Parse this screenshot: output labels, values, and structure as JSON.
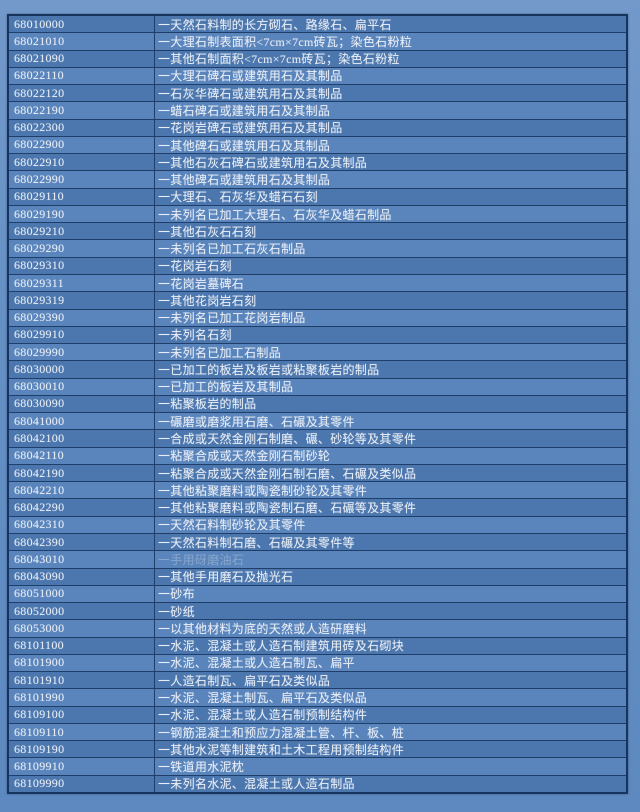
{
  "colors": {
    "page_background_top": "#7399ca",
    "page_background_bottom": "#5d89c0",
    "row_odd": "#4c77ae",
    "row_even": "#5a85bc",
    "grid_border": "#1f3e6a",
    "outer_border": "#16345d",
    "text": "#e9eef6",
    "faded_text": "#bacae0"
  },
  "table": {
    "columns": [
      "hs-code",
      "description"
    ],
    "rows": [
      {
        "code": "68010000",
        "desc": "一天然石料制的长方砌石、路缘石、扁平石",
        "faded": false
      },
      {
        "code": "68021010",
        "desc": "一大理石制表面积<7cm×7cm砖瓦；染色石粉粒",
        "faded": false
      },
      {
        "code": "68021090",
        "desc": "一其他石制面积<7cm×7cm砖瓦；染色石粉粒",
        "faded": false
      },
      {
        "code": "68022110",
        "desc": "一大理石碑石或建筑用石及其制品",
        "faded": false
      },
      {
        "code": "68022120",
        "desc": "一石灰华碑石或建筑用石及其制品",
        "faded": false
      },
      {
        "code": "68022190",
        "desc": "一蜡石碑石或建筑用石及其制品",
        "faded": false
      },
      {
        "code": "68022300",
        "desc": "一花岗岩碑石或建筑用石及其制品",
        "faded": false
      },
      {
        "code": "68022900",
        "desc": "一其他碑石或建筑用石及其制品",
        "faded": false
      },
      {
        "code": "68022910",
        "desc": "一其他石灰石碑石或建筑用石及其制品",
        "faded": false
      },
      {
        "code": "68022990",
        "desc": "一其他碑石或建筑用石及其制品",
        "faded": false
      },
      {
        "code": "68029110",
        "desc": "一大理石、石灰华及蜡石石刻",
        "faded": false
      },
      {
        "code": "68029190",
        "desc": "一未列名已加工大理石、石灰华及蜡石制品",
        "faded": false
      },
      {
        "code": "68029210",
        "desc": "一其他石灰石石刻",
        "faded": false
      },
      {
        "code": "68029290",
        "desc": "一未列名已加工石灰石制品",
        "faded": false
      },
      {
        "code": "68029310",
        "desc": "一花岗岩石刻",
        "faded": false
      },
      {
        "code": "68029311",
        "desc": "一花岗岩墓碑石",
        "faded": false
      },
      {
        "code": "68029319",
        "desc": "一其他花岗岩石刻",
        "faded": false
      },
      {
        "code": "68029390",
        "desc": "一未列名已加工花岗岩制品",
        "faded": false
      },
      {
        "code": "68029910",
        "desc": "一未列名石刻",
        "faded": false
      },
      {
        "code": "68029990",
        "desc": "一未列名已加工石制品",
        "faded": false
      },
      {
        "code": "68030000",
        "desc": "一已加工的板岩及板岩或粘聚板岩的制品",
        "faded": false
      },
      {
        "code": "68030010",
        "desc": "一已加工的板岩及其制品",
        "faded": false
      },
      {
        "code": "68030090",
        "desc": "一粘聚板岩的制品",
        "faded": false
      },
      {
        "code": "68041000",
        "desc": "一碾磨或磨浆用石磨、石碾及其零件",
        "faded": false
      },
      {
        "code": "68042100",
        "desc": "一合成或天然金刚石制磨、碾、砂轮等及其零件",
        "faded": false
      },
      {
        "code": "68042110",
        "desc": "一粘聚合成或天然金刚石制砂轮",
        "faded": false
      },
      {
        "code": "68042190",
        "desc": "一粘聚合成或天然金刚石制石磨、石碾及类似品",
        "faded": false
      },
      {
        "code": "68042210",
        "desc": "一其他粘聚磨料或陶瓷制砂轮及其零件",
        "faded": false
      },
      {
        "code": "68042290",
        "desc": "一其他粘聚磨料或陶瓷制石磨、石碾等及其零件",
        "faded": false
      },
      {
        "code": "68042310",
        "desc": "一天然石料制砂轮及其零件",
        "faded": false
      },
      {
        "code": "68042390",
        "desc": "一天然石料制石磨、石碾及其零件等",
        "faded": false
      },
      {
        "code": "68043010",
        "desc": "一手用砑磨油石",
        "faded": true
      },
      {
        "code": "68043090",
        "desc": "一其他手用磨石及抛光石",
        "faded": false
      },
      {
        "code": "68051000",
        "desc": "一砂布",
        "faded": false
      },
      {
        "code": "68052000",
        "desc": "一砂纸",
        "faded": false
      },
      {
        "code": "68053000",
        "desc": "一以其他材料为底的天然或人造研磨料",
        "faded": false
      },
      {
        "code": "68101100",
        "desc": "一水泥、混凝土或人造石制建筑用砖及石砌块",
        "faded": false
      },
      {
        "code": "68101900",
        "desc": "一水泥、混凝土或人造石制瓦、扁平",
        "faded": false
      },
      {
        "code": "68101910",
        "desc": "一人造石制瓦、扁平石及类似品",
        "faded": false
      },
      {
        "code": "68101990",
        "desc": "一水泥、混凝土制瓦、扁平石及类似品",
        "faded": false
      },
      {
        "code": "68109100",
        "desc": "一水泥、混凝土或人造石制预制结构件",
        "faded": false
      },
      {
        "code": "68109110",
        "desc": "一钢筋混凝土和预应力混凝土管、杆、板、桩",
        "faded": false
      },
      {
        "code": "68109190",
        "desc": "一其他水泥等制建筑和土木工程用预制结构件",
        "faded": false
      },
      {
        "code": "68109910",
        "desc": "一铁道用水泥枕",
        "faded": false
      },
      {
        "code": "68109990",
        "desc": "一未列名水泥、混凝土或人造石制品",
        "faded": false
      }
    ]
  }
}
